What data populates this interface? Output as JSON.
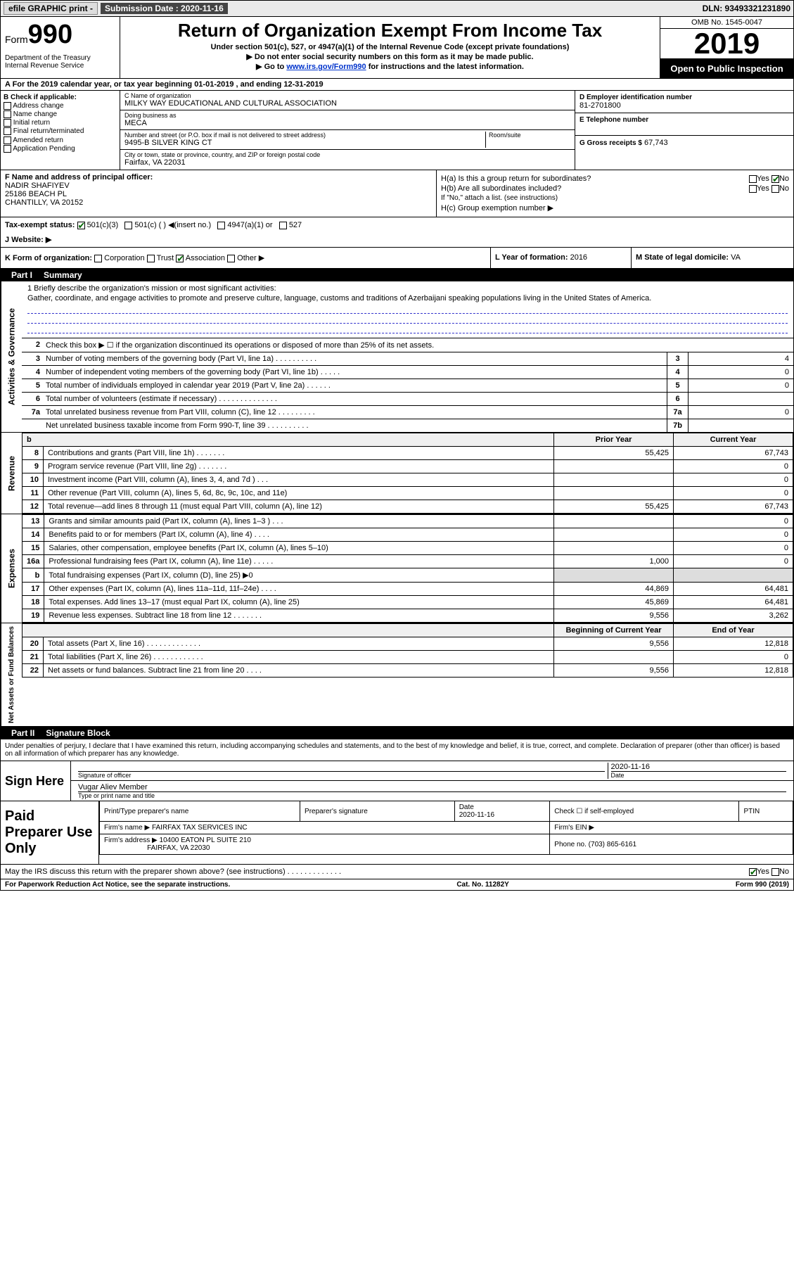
{
  "topbar": {
    "efile": "efile GRAPHIC print -",
    "sub_label": "Submission Date :",
    "sub_date": "2020-11-16",
    "dln": "DLN: 93493321231890"
  },
  "header": {
    "form_prefix": "Form",
    "form_num": "990",
    "dept": "Department of the Treasury\nInternal Revenue Service",
    "title": "Return of Organization Exempt From Income Tax",
    "sub1": "Under section 501(c), 527, or 4947(a)(1) of the Internal Revenue Code (except private foundations)",
    "sub2": "▶ Do not enter social security numbers on this form as it may be made public.",
    "sub3_pre": "▶ Go to ",
    "sub3_link": "www.irs.gov/Form990",
    "sub3_post": " for instructions and the latest information.",
    "omb": "OMB No. 1545-0047",
    "year": "2019",
    "open": "Open to Public Inspection"
  },
  "line_a": "A For the 2019 calendar year, or tax year beginning 01-01-2019   , and ending 12-31-2019",
  "check_b": {
    "title": "B Check if applicable:",
    "items": [
      "Address change",
      "Name change",
      "Initial return",
      "Final return/terminated",
      "Amended return",
      "Application Pending"
    ]
  },
  "box_c": {
    "name_label": "C Name of organization",
    "name": "MILKY WAY EDUCATIONAL AND CULTURAL ASSOCIATION",
    "dba_label": "Doing business as",
    "dba": "MECA",
    "addr_label": "Number and street (or P.O. box if mail is not delivered to street address)",
    "addr": "9495-B SILVER KING CT",
    "room_label": "Room/suite",
    "city_label": "City or town, state or province, country, and ZIP or foreign postal code",
    "city": "Fairfax, VA  22031"
  },
  "box_d": {
    "ein_label": "D Employer identification number",
    "ein": "81-2701800",
    "tel_label": "E Telephone number",
    "gross_label": "G Gross receipts $",
    "gross": "67,743"
  },
  "box_f": {
    "label": "F Name and address of principal officer:",
    "name": "NADIR SHAFIYEV",
    "addr1": "25186 BEACH PL",
    "addr2": "CHANTILLY, VA  20152"
  },
  "box_h": {
    "a_label": "H(a)  Is this a group return for subordinates?",
    "a_val": "No",
    "b_label": "H(b)  Are all subordinates included?",
    "note": "If \"No,\" attach a list. (see instructions)",
    "c_label": "H(c)  Group exemption number ▶"
  },
  "box_i": {
    "label": "Tax-exempt status:",
    "opts": [
      "501(c)(3)",
      "501(c) (  ) ◀(insert no.)",
      "4947(a)(1) or",
      "527"
    ]
  },
  "box_j": "J   Website: ▶",
  "box_k": "K Form of organization:",
  "box_k_opts": [
    "Corporation",
    "Trust",
    "Association",
    "Other ▶"
  ],
  "box_l_label": "L Year of formation:",
  "box_l_val": "2016",
  "box_m_label": "M State of legal domicile:",
  "box_m_val": "VA",
  "part1": {
    "header": "Part I",
    "title": "Summary",
    "mission_label": "1 Briefly describe the organization's mission or most significant activities:",
    "mission": "Gather, coordinate, and engage activities to promote and preserve culture, language, customs and traditions of Azerbaijani speaking populations living in the United States of America.",
    "line2": "Check this box ▶ ☐ if the organization discontinued its operations or disposed of more than 25% of its net assets."
  },
  "gov_rows": [
    {
      "ln": "3",
      "desc": "Number of voting members of the governing body (Part VI, line 1a)  .  .  .  .  .  .  .  .  .  .",
      "box": "3",
      "val": "4"
    },
    {
      "ln": "4",
      "desc": "Number of independent voting members of the governing body (Part VI, line 1b)  .  .  .  .  .",
      "box": "4",
      "val": "0"
    },
    {
      "ln": "5",
      "desc": "Total number of individuals employed in calendar year 2019 (Part V, line 2a)  .  .  .  .  .  .",
      "box": "5",
      "val": "0"
    },
    {
      "ln": "6",
      "desc": "Total number of volunteers (estimate if necessary)  .  .  .  .  .  .  .  .  .  .  .  .  .  .",
      "box": "6",
      "val": ""
    },
    {
      "ln": "7a",
      "desc": "Total unrelated business revenue from Part VIII, column (C), line 12  .  .  .  .  .  .  .  .  .",
      "box": "7a",
      "val": "0"
    },
    {
      "ln": "",
      "desc": "Net unrelated business taxable income from Form 990-T, line 39  .  .  .  .  .  .  .  .  .  .",
      "box": "7b",
      "val": ""
    }
  ],
  "col_headers": {
    "b": "b",
    "prior": "Prior Year",
    "current": "Current Year"
  },
  "rev_rows": [
    {
      "ln": "8",
      "desc": "Contributions and grants (Part VIII, line 1h)  .  .  .  .  .  .  .",
      "prior": "55,425",
      "curr": "67,743"
    },
    {
      "ln": "9",
      "desc": "Program service revenue (Part VIII, line 2g)  .  .  .  .  .  .  .",
      "prior": "",
      "curr": "0"
    },
    {
      "ln": "10",
      "desc": "Investment income (Part VIII, column (A), lines 3, 4, and 7d )  .  .  .",
      "prior": "",
      "curr": "0"
    },
    {
      "ln": "11",
      "desc": "Other revenue (Part VIII, column (A), lines 5, 6d, 8c, 9c, 10c, and 11e)",
      "prior": "",
      "curr": "0"
    },
    {
      "ln": "12",
      "desc": "Total revenue—add lines 8 through 11 (must equal Part VIII, column (A), line 12)",
      "prior": "55,425",
      "curr": "67,743"
    }
  ],
  "exp_rows": [
    {
      "ln": "13",
      "desc": "Grants and similar amounts paid (Part IX, column (A), lines 1–3 )  .  .  .",
      "prior": "",
      "curr": "0"
    },
    {
      "ln": "14",
      "desc": "Benefits paid to or for members (Part IX, column (A), line 4)  .  .  .  .",
      "prior": "",
      "curr": "0"
    },
    {
      "ln": "15",
      "desc": "Salaries, other compensation, employee benefits (Part IX, column (A), lines 5–10)",
      "prior": "",
      "curr": "0"
    },
    {
      "ln": "16a",
      "desc": "Professional fundraising fees (Part IX, column (A), line 11e)  .  .  .  .  .",
      "prior": "1,000",
      "curr": "0"
    },
    {
      "ln": "b",
      "desc": "Total fundraising expenses (Part IX, column (D), line 25) ▶0",
      "prior": "SHADED",
      "curr": "SHADED"
    },
    {
      "ln": "17",
      "desc": "Other expenses (Part IX, column (A), lines 11a–11d, 11f–24e)  .  .  .  .",
      "prior": "44,869",
      "curr": "64,481"
    },
    {
      "ln": "18",
      "desc": "Total expenses. Add lines 13–17 (must equal Part IX, column (A), line 25)",
      "prior": "45,869",
      "curr": "64,481"
    },
    {
      "ln": "19",
      "desc": "Revenue less expenses. Subtract line 18 from line 12  .  .  .  .  .  .  .",
      "prior": "9,556",
      "curr": "3,262"
    }
  ],
  "net_headers": {
    "beg": "Beginning of Current Year",
    "end": "End of Year"
  },
  "net_rows": [
    {
      "ln": "20",
      "desc": "Total assets (Part X, line 16)  .  .  .  .  .  .  .  .  .  .  .  .  .",
      "prior": "9,556",
      "curr": "12,818"
    },
    {
      "ln": "21",
      "desc": "Total liabilities (Part X, line 26)  .  .  .  .  .  .  .  .  .  .  .  .",
      "prior": "",
      "curr": "0"
    },
    {
      "ln": "22",
      "desc": "Net assets or fund balances. Subtract line 21 from line 20  .  .  .  .",
      "prior": "9,556",
      "curr": "12,818"
    }
  ],
  "part2": {
    "header": "Part II",
    "title": "Signature Block",
    "declaration": "Under penalties of perjury, I declare that I have examined this return, including accompanying schedules and statements, and to the best of my knowledge and belief, it is true, correct, and complete. Declaration of preparer (other than officer) is based on all information of which preparer has any knowledge."
  },
  "sign": {
    "label": "Sign Here",
    "sig_label": "Signature of officer",
    "date": "2020-11-16",
    "date_label": "Date",
    "name": "Vugar Aliev Member",
    "name_label": "Type or print name and title"
  },
  "prep": {
    "label": "Paid Preparer Use Only",
    "h1": "Print/Type preparer's name",
    "h2": "Preparer's signature",
    "h3": "Date",
    "h3v": "2020-11-16",
    "h4": "Check ☐ if self-employed",
    "h5": "PTIN",
    "firm_label": "Firm's name   ▶",
    "firm": "FAIRFAX TAX SERVICES INC",
    "ein_label": "Firm's EIN ▶",
    "addr_label": "Firm's address ▶",
    "addr": "10400 EATON PL SUITE 210",
    "addr2": "FAIRFAX, VA  22030",
    "phone_label": "Phone no.",
    "phone": "(703) 865-6161",
    "discuss": "May the IRS discuss this return with the preparer shown above? (see instructions)  .  .  .  .  .  .  .  .  .  .  .  .  .",
    "discuss_val": "Yes"
  },
  "footer": {
    "left": "For Paperwork Reduction Act Notice, see the separate instructions.",
    "mid": "Cat. No. 11282Y",
    "right": "Form 990 (2019)"
  },
  "vert_labels": {
    "gov": "Activities & Governance",
    "rev": "Revenue",
    "exp": "Expenses",
    "net": "Net Assets or Fund Balances"
  }
}
